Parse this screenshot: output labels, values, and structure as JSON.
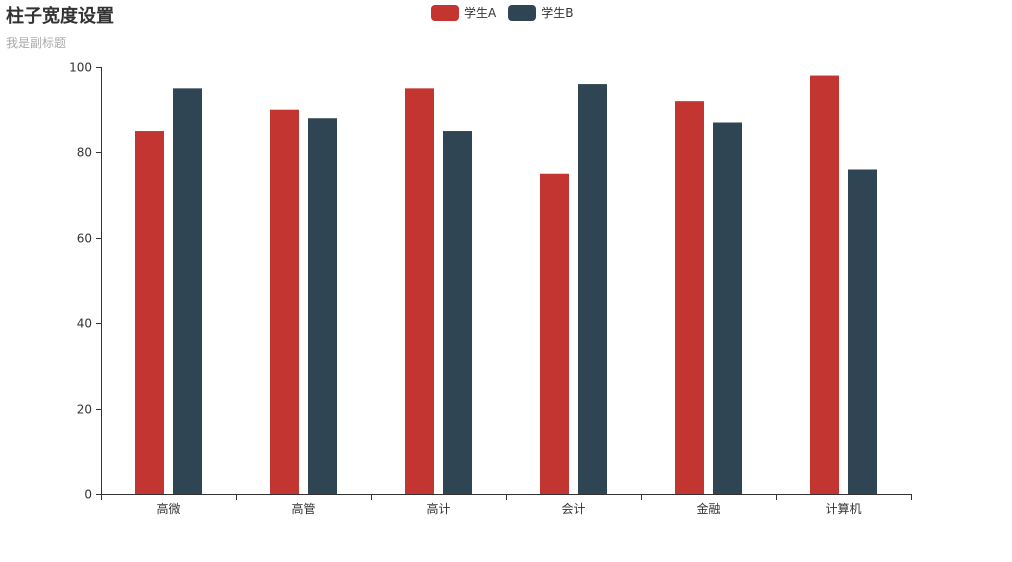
{
  "chart_data": {
    "type": "bar",
    "title": "柱子宽度设置",
    "subtitle": "我是副标题",
    "categories": [
      "高微",
      "高管",
      "高计",
      "会计",
      "金融",
      "计算机"
    ],
    "series": [
      {
        "name": "学生A",
        "color": "#c23531",
        "values": [
          85,
          90,
          95,
          75,
          92,
          98
        ]
      },
      {
        "name": "学生B",
        "color": "#2f4554",
        "values": [
          95,
          88,
          85,
          96,
          87,
          76
        ]
      }
    ],
    "ylim": [
      0,
      100
    ],
    "yticks": [
      0,
      20,
      40,
      60,
      80,
      100
    ],
    "grid": false,
    "legend_position": "top-center"
  }
}
